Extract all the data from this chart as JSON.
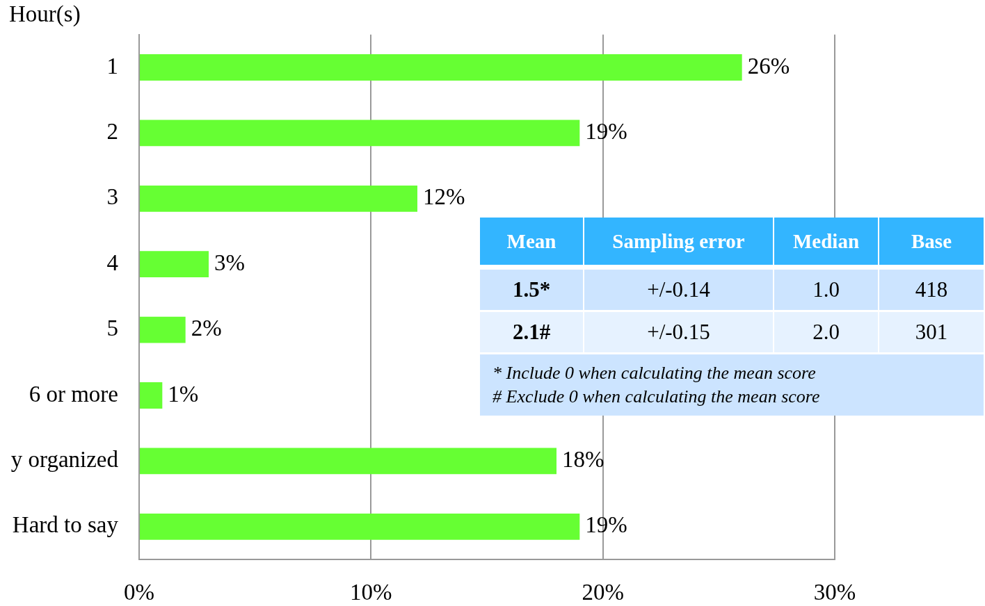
{
  "chart_data": {
    "type": "bar",
    "orientation": "horizontal",
    "ylabel": "Hour(s)",
    "categories": [
      "1",
      "2",
      "3",
      "4",
      "5",
      "6 or more",
      "y organized",
      "Hard to say"
    ],
    "values": [
      26,
      19,
      12,
      3,
      2,
      1,
      18,
      19
    ],
    "value_labels": [
      "26%",
      "19%",
      "12%",
      "3%",
      "2%",
      "1%",
      "18%",
      "19%"
    ],
    "color": "#66ff33",
    "xlim": [
      0,
      30
    ],
    "xticks": [
      {
        "value": 0,
        "label": "0%"
      },
      {
        "value": 10,
        "label": "10%"
      },
      {
        "value": 20,
        "label": "20%"
      },
      {
        "value": 30,
        "label": "30%"
      }
    ],
    "grid": "x",
    "annotations": [
      "Mean",
      "Sampling error",
      "Median",
      "Base",
      "1.5*",
      "+/-0.14",
      "1.0",
      "418",
      "2.1#",
      "+/-0.15",
      "2.0",
      "301",
      "* Include 0 when calculating the mean score",
      "# Exclude 0 when calculating the mean score"
    ]
  }
}
